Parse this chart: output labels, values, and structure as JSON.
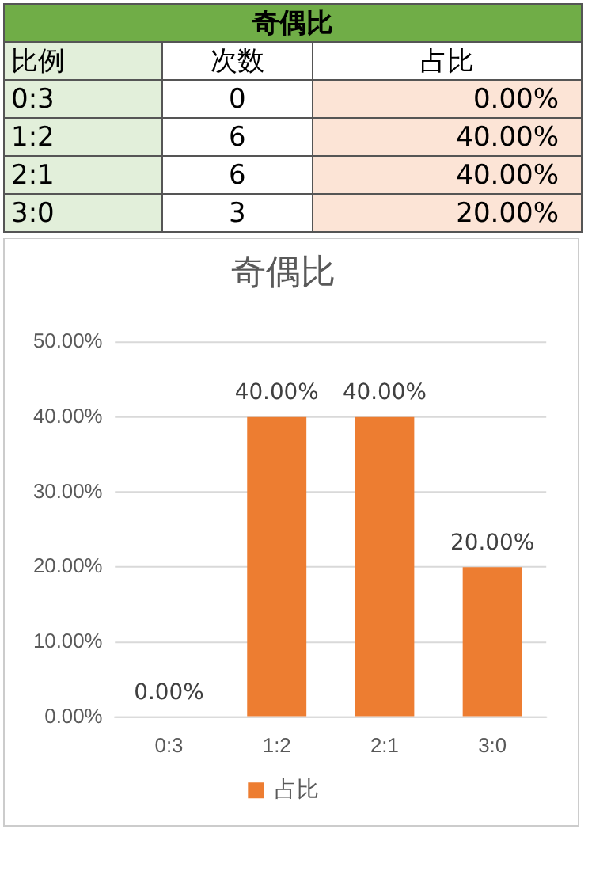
{
  "chart_data": [
    {
      "type": "heatmap",
      "title": "奇偶比",
      "ylabel": "比例",
      "categories": [
        "次数",
        "占比"
      ],
      "y_categories": [
        "0:3",
        "1:2",
        "2:1",
        "3:0"
      ],
      "cells": [
        [
          0,
          0
        ],
        [
          6,
          40
        ],
        [
          6,
          40
        ],
        [
          3,
          20
        ]
      ],
      "cell_labels": [
        [
          "0",
          "0.00%"
        ],
        [
          "6",
          "40.00%"
        ],
        [
          "6",
          "40.00%"
        ],
        [
          "3",
          "20.00%"
        ]
      ]
    },
    {
      "type": "bar",
      "title": "奇偶比",
      "categories": [
        "0:3",
        "1:2",
        "2:1",
        "3:0"
      ],
      "series": [
        {
          "name": "占比",
          "color": "#ed7d31",
          "values": [
            0,
            40,
            40,
            20
          ],
          "value_labels": [
            "0.00%",
            "40.00%",
            "40.00%",
            "20.00%"
          ]
        }
      ],
      "ylim": [
        0,
        50
      ],
      "yticks": [
        {
          "value": 0,
          "label": "0.00%"
        },
        {
          "value": 10,
          "label": "10.00%"
        },
        {
          "value": 20,
          "label": "20.00%"
        },
        {
          "value": 30,
          "label": "30.00%"
        },
        {
          "value": 40,
          "label": "40.00%"
        },
        {
          "value": 50,
          "label": "50.00%"
        }
      ],
      "grid": "y",
      "legend": "bottom"
    }
  ]
}
